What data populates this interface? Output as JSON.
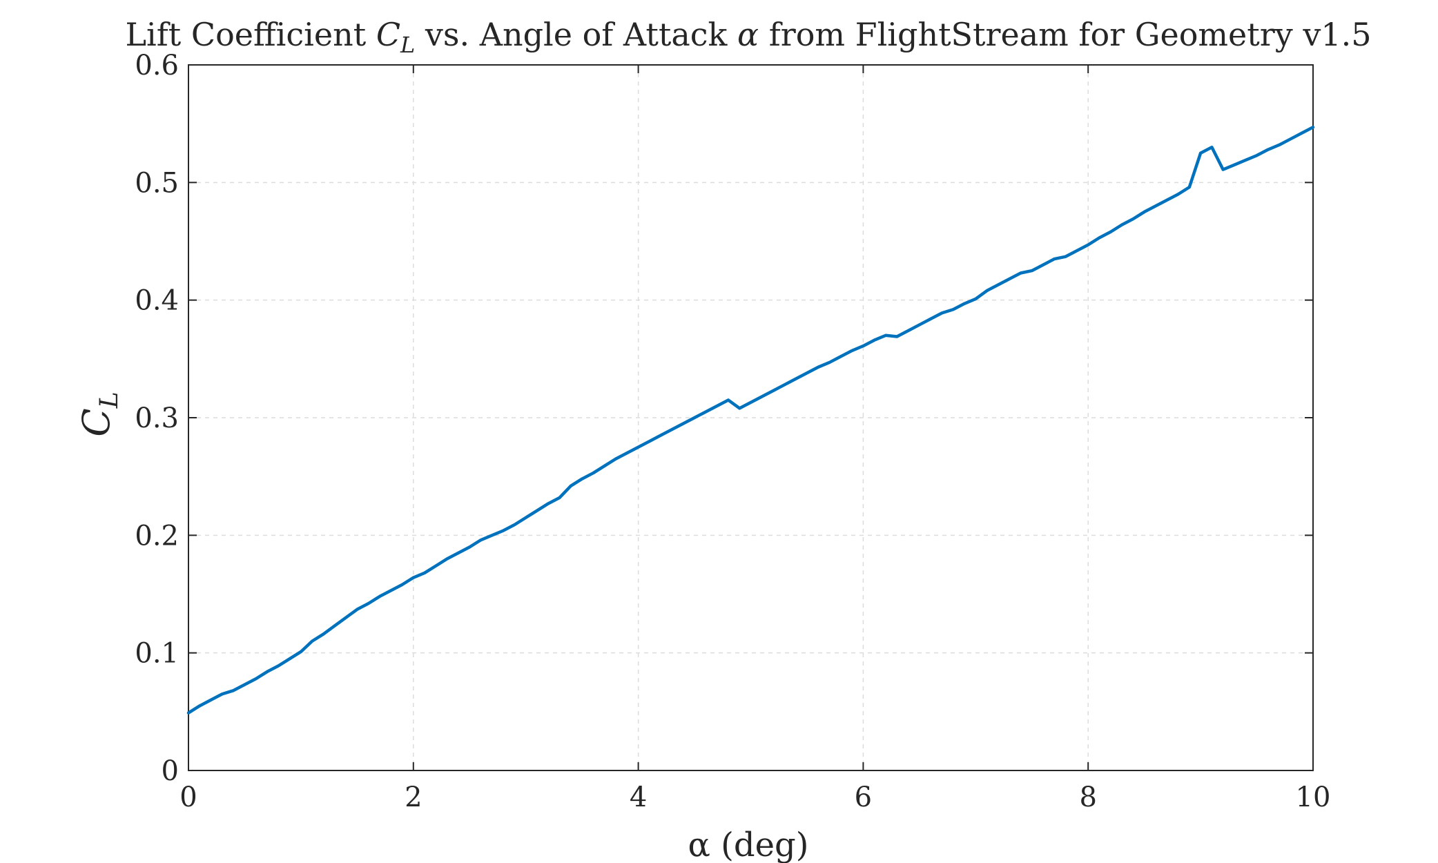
{
  "chart_data": {
    "type": "line",
    "title": "Lift Coefficient C_L vs. Angle of Attack α from FlightStream for Geometry v1.5",
    "title_parts": {
      "pre": "Lift Coefficient ",
      "var_main": "C",
      "var_sub": "L",
      "mid": " vs. Angle of Attack ",
      "alpha": "α",
      "post": " from FlightStream for Geometry v1.5"
    },
    "xlabel": "α (deg)",
    "ylabel": "C_L",
    "ylabel_parts": {
      "main": "C",
      "sub": "L"
    },
    "xlim": [
      0,
      10
    ],
    "ylim": [
      0,
      0.6
    ],
    "xticks": [
      0,
      2,
      4,
      6,
      8,
      10
    ],
    "xtick_labels": [
      "0",
      "2",
      "4",
      "6",
      "8",
      "10"
    ],
    "yticks": [
      0,
      0.1,
      0.2,
      0.3,
      0.4,
      0.5,
      0.6
    ],
    "ytick_labels": [
      "0",
      "0.1",
      "0.2",
      "0.3",
      "0.4",
      "0.5",
      "0.6"
    ],
    "grid": true,
    "line_color": "#0072BD",
    "series": [
      {
        "x": [
          0,
          0.1,
          0.2,
          0.3,
          0.4,
          0.5,
          0.6,
          0.7,
          0.8,
          0.9,
          1.0,
          1.1,
          1.2,
          1.3,
          1.4,
          1.5,
          1.6,
          1.7,
          1.8,
          1.9,
          2.0,
          2.1,
          2.2,
          2.3,
          2.4,
          2.5,
          2.6,
          2.7,
          2.8,
          2.9,
          3.0,
          3.1,
          3.2,
          3.3,
          3.4,
          3.5,
          3.6,
          3.7,
          3.8,
          3.9,
          4.0,
          4.1,
          4.2,
          4.3,
          4.4,
          4.5,
          4.6,
          4.7,
          4.8,
          4.9,
          5.0,
          5.1,
          5.2,
          5.3,
          5.4,
          5.5,
          5.6,
          5.7,
          5.8,
          5.9,
          6.0,
          6.1,
          6.2,
          6.3,
          6.4,
          6.5,
          6.6,
          6.7,
          6.8,
          6.9,
          7.0,
          7.1,
          7.2,
          7.3,
          7.4,
          7.5,
          7.6,
          7.7,
          7.8,
          7.9,
          8.0,
          8.1,
          8.2,
          8.3,
          8.4,
          8.5,
          8.6,
          8.7,
          8.8,
          8.9,
          9.0,
          9.1,
          9.2,
          9.3,
          9.4,
          9.5,
          9.6,
          9.7,
          9.8,
          9.9,
          10.0
        ],
        "y": [
          0.049,
          0.055,
          0.06,
          0.065,
          0.068,
          0.073,
          0.078,
          0.084,
          0.089,
          0.095,
          0.101,
          0.11,
          0.116,
          0.123,
          0.13,
          0.137,
          0.142,
          0.148,
          0.153,
          0.158,
          0.164,
          0.168,
          0.174,
          0.18,
          0.185,
          0.19,
          0.196,
          0.2,
          0.204,
          0.209,
          0.215,
          0.221,
          0.227,
          0.232,
          0.242,
          0.248,
          0.253,
          0.259,
          0.265,
          0.27,
          0.275,
          0.28,
          0.285,
          0.29,
          0.295,
          0.3,
          0.305,
          0.31,
          0.315,
          0.308,
          0.313,
          0.318,
          0.323,
          0.328,
          0.333,
          0.338,
          0.343,
          0.347,
          0.352,
          0.357,
          0.361,
          0.366,
          0.37,
          0.369,
          0.374,
          0.379,
          0.384,
          0.389,
          0.392,
          0.397,
          0.401,
          0.408,
          0.413,
          0.418,
          0.423,
          0.425,
          0.43,
          0.435,
          0.437,
          0.442,
          0.447,
          0.453,
          0.458,
          0.464,
          0.469,
          0.475,
          0.48,
          0.485,
          0.49,
          0.496,
          0.525,
          0.53,
          0.511,
          0.515,
          0.519,
          0.523,
          0.528,
          0.532,
          0.537,
          0.542,
          0.547
        ]
      }
    ]
  }
}
